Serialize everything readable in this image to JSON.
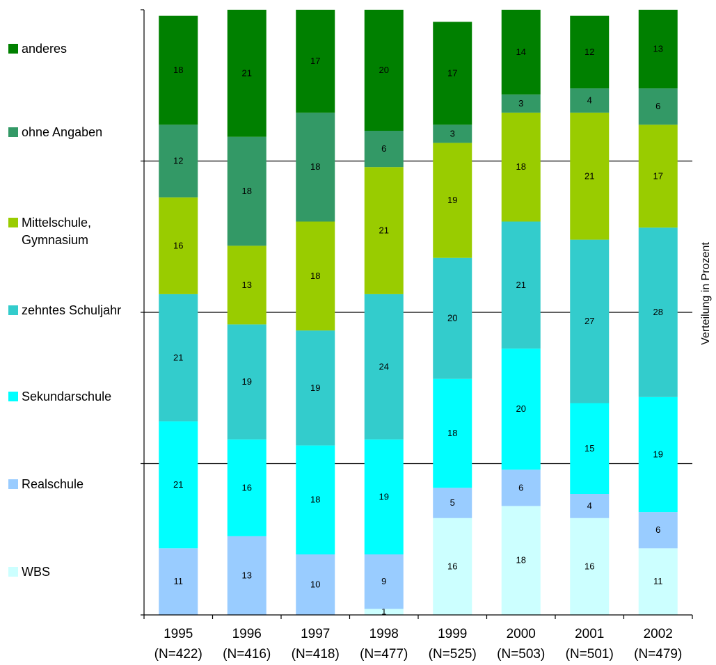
{
  "chart_data": {
    "type": "bar",
    "stacked": true,
    "categories": [
      "1995",
      "1996",
      "1997",
      "1998",
      "1999",
      "2000",
      "2001",
      "2002"
    ],
    "category_sublabels": [
      "(N=422)",
      "(N=416)",
      "(N=418)",
      "(N=477)",
      "(N=525)",
      "(N=503)",
      "(N=501)",
      "(N=479)"
    ],
    "series": [
      {
        "name": "WBS",
        "color": "#ccffff",
        "values": [
          0,
          0,
          0,
          1,
          16,
          18,
          16,
          11
        ]
      },
      {
        "name": "Realschule",
        "color": "#99ccff",
        "values": [
          11,
          13,
          10,
          9,
          5,
          6,
          4,
          6
        ]
      },
      {
        "name": "Sekundarschule",
        "color": "#00ffff",
        "values": [
          21,
          16,
          18,
          19,
          18,
          20,
          15,
          19
        ]
      },
      {
        "name": "zehntes Schuljahr",
        "color": "#33cccc",
        "values": [
          21,
          19,
          19,
          24,
          20,
          21,
          27,
          28
        ]
      },
      {
        "name": "Mittelschule,\nGymnasium",
        "color": "#99cc00",
        "values": [
          16,
          13,
          18,
          21,
          19,
          18,
          21,
          17
        ]
      },
      {
        "name": "ohne Angaben",
        "color": "#339966",
        "values": [
          12,
          18,
          18,
          6,
          3,
          3,
          4,
          6
        ]
      },
      {
        "name": "anderes",
        "color": "#008000",
        "values": [
          18,
          21,
          17,
          20,
          17,
          14,
          12,
          13
        ]
      }
    ],
    "ylabel": "Verteilung in Prozent",
    "ylim": [
      0,
      100
    ],
    "grid": true,
    "legend_position": "left"
  }
}
